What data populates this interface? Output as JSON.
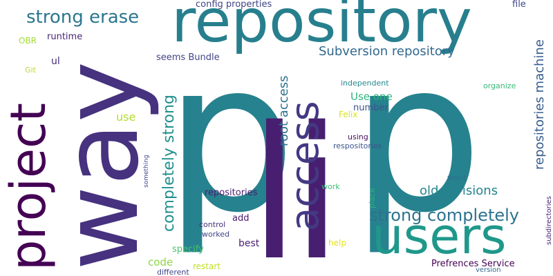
{
  "words": [
    {
      "text": "p",
      "color": "#26828e"
    },
    {
      "text": "p",
      "color": "#26828e"
    },
    {
      "text": "li",
      "color": "#481f70"
    },
    {
      "text": "way",
      "color": "#46327e"
    },
    {
      "text": "repository",
      "color": "#277f8e"
    },
    {
      "text": "users",
      "color": "#1f988b"
    },
    {
      "text": "project",
      "color": "#440154"
    },
    {
      "text": "access",
      "color": "#443983"
    },
    {
      "text": "strong erase",
      "color": "#2a768e"
    },
    {
      "text": "completely strong",
      "color": "#21908d"
    },
    {
      "text": "strong completely",
      "color": "#2c728e"
    },
    {
      "text": "Subversion repository",
      "color": "#31688e"
    },
    {
      "text": "old revisions",
      "color": "#25848e"
    },
    {
      "text": "repositories machine",
      "color": "#365c8d"
    },
    {
      "text": "root access",
      "color": "#2d708e"
    },
    {
      "text": "config properties",
      "color": "#404387"
    },
    {
      "text": "file",
      "color": "#3f4889"
    },
    {
      "text": "OBR",
      "color": "#a5db36"
    },
    {
      "text": "runtime",
      "color": "#482576"
    },
    {
      "text": "Git",
      "color": "#b5de2b"
    },
    {
      "text": "ul",
      "color": "#472d7b"
    },
    {
      "text": "seems Bundle",
      "color": "#414487"
    },
    {
      "text": "use",
      "color": "#b2dd2d"
    },
    {
      "text": "Use one",
      "color": "#2fb47c"
    },
    {
      "text": "number",
      "color": "#3b528b"
    },
    {
      "text": "Felix",
      "color": "#d8e219"
    },
    {
      "text": "independent",
      "color": "#24878e"
    },
    {
      "text": "organize",
      "color": "#38b977"
    },
    {
      "text": "using",
      "color": "#46085c"
    },
    {
      "text": "respositories",
      "color": "#3a548c"
    },
    {
      "text": "something",
      "color": "#3e4989"
    },
    {
      "text": "want",
      "color": "#2d718e"
    },
    {
      "text": "subdirectories",
      "color": "#482475"
    },
    {
      "text": "work",
      "color": "#3dbc74"
    },
    {
      "text": "place",
      "color": "#2ab07f"
    },
    {
      "text": "repositories",
      "color": "#481b6d"
    },
    {
      "text": "add",
      "color": "#481769"
    },
    {
      "text": "control",
      "color": "#46307e"
    },
    {
      "text": "worked",
      "color": "#404688"
    },
    {
      "text": "best",
      "color": "#482173"
    },
    {
      "text": "help",
      "color": "#e5e419"
    },
    {
      "text": "specify",
      "color": "#4ac16d"
    },
    {
      "text": "code",
      "color": "#8bd646"
    },
    {
      "text": "restart",
      "color": "#c0df25"
    },
    {
      "text": "different",
      "color": "#3f4788"
    },
    {
      "text": "Prefrences Service",
      "color": "#440154"
    },
    {
      "text": "version",
      "color": "#31668e"
    }
  ]
}
